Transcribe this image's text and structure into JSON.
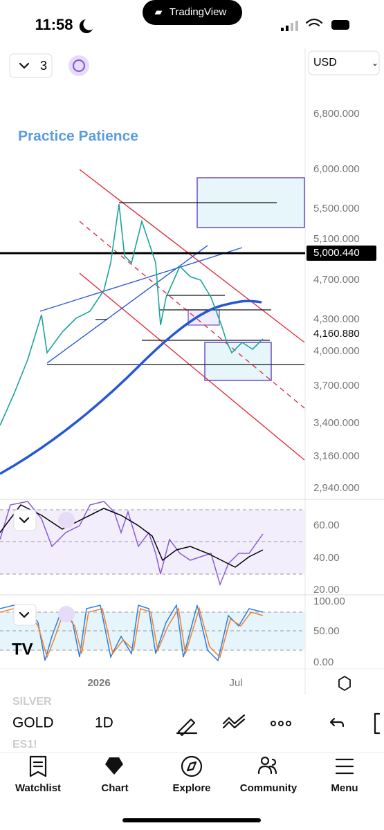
{
  "status_bar": {
    "time": "11:58",
    "app_name": "TradingView"
  },
  "toolbar": {
    "layout_count": "3",
    "currency": "USD"
  },
  "chart": {
    "annotation": "Practice Patience",
    "price_axis": [
      "6,800.000",
      "6,000.000",
      "5,500.000",
      "5,100.000",
      "4,700.000",
      "4,300.000",
      "4,000.000",
      "3,700.000",
      "3,400.000",
      "3,160.000",
      "2,940.000"
    ],
    "price_tags": [
      "5,000.440",
      "4,160.880"
    ],
    "rsi_axis": [
      "60.00",
      "40.00",
      "20.00"
    ],
    "stoch_axis": [
      "100.00",
      "50.00",
      "0.00"
    ],
    "time_axis": [
      "2026",
      "Jul"
    ]
  },
  "symbol_bar": {
    "symbols": [
      "SILVER",
      "GOLD",
      "ES1!"
    ],
    "interval": "1D"
  },
  "nav": [
    "Watchlist",
    "Chart",
    "Explore",
    "Community",
    "Menu"
  ]
}
